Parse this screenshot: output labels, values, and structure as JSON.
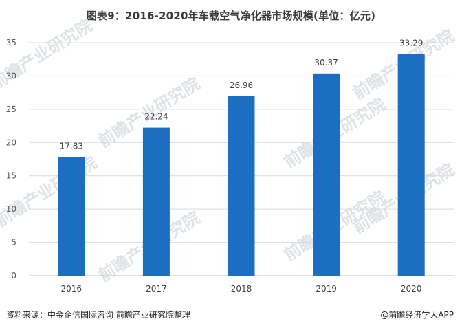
{
  "title": "图表9：2016-2020年车载空气净化器市场规模(单位：亿元)",
  "chart_data": {
    "type": "bar",
    "categories": [
      "2016",
      "2017",
      "2018",
      "2019",
      "2020"
    ],
    "values": [
      17.83,
      22.24,
      26.96,
      30.37,
      33.29
    ],
    "value_labels": [
      "17.83",
      "22.24",
      "26.96",
      "30.37",
      "33.29"
    ],
    "ylim": [
      0,
      35
    ],
    "yticks": [
      "0",
      "5",
      "10",
      "15",
      "20",
      "25",
      "30",
      "35"
    ],
    "ytick_values": [
      0,
      5,
      10,
      15,
      20,
      25,
      30,
      35
    ],
    "grid": true,
    "bar_color": "#1b6ec2"
  },
  "footer": {
    "source": "资料来源：中金企信国际咨询 前瞻产业研究院整理",
    "credit": "@前瞻经济学人APP"
  },
  "watermark": "前瞻产业研究院"
}
